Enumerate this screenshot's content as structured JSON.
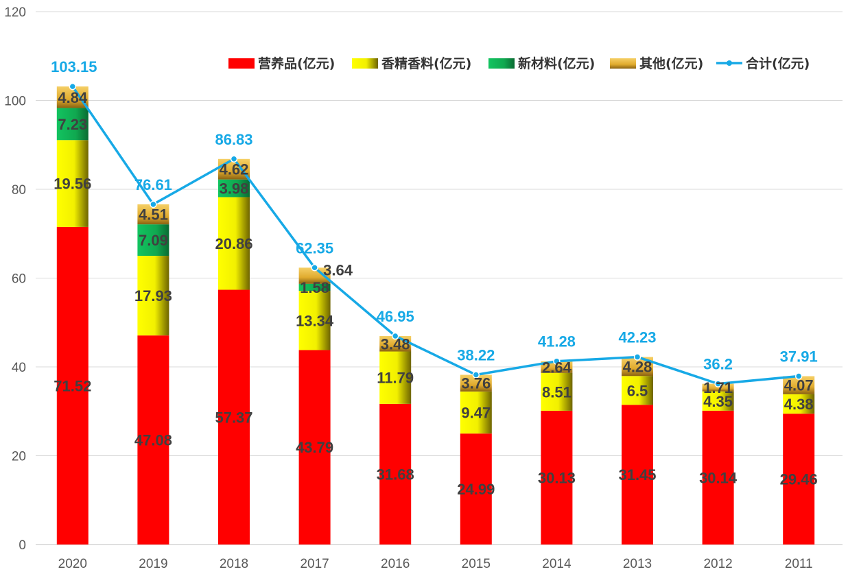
{
  "chart_data": {
    "type": "bar",
    "stacked": true,
    "title": "",
    "xlabel": "",
    "ylabel": "",
    "ylim": [
      0,
      120
    ],
    "yticks": [
      0,
      20,
      40,
      60,
      80,
      100,
      120
    ],
    "grid": true,
    "legend_position": "top-right",
    "categories": [
      "2020",
      "2019",
      "2018",
      "2017",
      "2016",
      "2015",
      "2014",
      "2013",
      "2012",
      "2011"
    ],
    "series": [
      {
        "name": "营养品(亿元)",
        "color": "#ff0000",
        "values": [
          71.52,
          47.08,
          57.37,
          43.79,
          31.68,
          24.99,
          30.13,
          31.45,
          30.14,
          29.46
        ]
      },
      {
        "name": "香精香料(亿元)",
        "color": "#ffff00",
        "values": [
          19.56,
          17.93,
          20.86,
          13.34,
          11.79,
          9.47,
          8.51,
          6.5,
          4.35,
          4.38
        ]
      },
      {
        "name": "新材料(亿元)",
        "color": "#16b157",
        "values": [
          7.23,
          7.09,
          3.98,
          1.58,
          null,
          null,
          null,
          null,
          null,
          null
        ]
      },
      {
        "name": "其他(亿元)",
        "color": "#e6b53a",
        "values": [
          4.84,
          4.51,
          4.62,
          3.64,
          3.48,
          3.76,
          2.64,
          4.28,
          1.71,
          4.07
        ]
      }
    ],
    "line": {
      "name": "合计(亿元)",
      "color": "#17a9e6",
      "values": [
        103.15,
        76.61,
        86.83,
        62.35,
        46.95,
        38.22,
        41.28,
        42.23,
        36.2,
        37.91
      ]
    }
  }
}
